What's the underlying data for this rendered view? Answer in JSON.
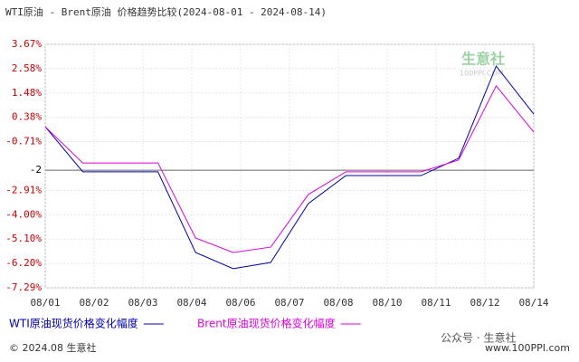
{
  "chart_data": {
    "type": "line",
    "title": "WTI原油 - Brent原油 价格趋势比较(2024-08-01 - 2024-08-14)",
    "xticks": [
      "08/01",
      "08/02",
      "08/03",
      "08/04",
      "08/06",
      "08/07",
      "08/08",
      "08/10",
      "08/11",
      "08/12",
      "08/14"
    ],
    "series": [
      {
        "name": "WTI原油现货价格变化幅度",
        "color": "#0000aa",
        "values": [
          -0.04,
          -2.07,
          -2.07,
          -2.07,
          -5.7,
          -6.43,
          -6.15,
          -3.5,
          -2.24,
          -2.24,
          -2.24,
          -1.46,
          2.69,
          0.53
        ]
      },
      {
        "name": "Brent原油现货价格变化幅度",
        "color": "#dd00dd",
        "values": [
          -0.04,
          -1.67,
          -1.67,
          -1.67,
          -5.05,
          -5.7,
          -5.46,
          -3.09,
          -2.07,
          -2.07,
          -2.07,
          -1.54,
          1.8,
          -0.28
        ]
      }
    ],
    "ylim": [
      -7.29,
      3.67
    ],
    "yticks": [
      {
        "value": 3.67,
        "label": "3.67%"
      },
      {
        "value": 2.58,
        "label": "2.58%"
      },
      {
        "value": 1.48,
        "label": "1.48%"
      },
      {
        "value": 0.38,
        "label": "0.38%"
      },
      {
        "value": -0.71,
        "label": "-0.71%"
      },
      -2,
      {
        "value": -2.91,
        "label": "-2.91%"
      },
      {
        "value": -4.0,
        "label": "-4.00%"
      },
      {
        "value": -5.1,
        "label": "-5.10%"
      },
      {
        "value": -6.2,
        "label": "-6.20%"
      },
      {
        "value": -7.29,
        "label": "-7.29%"
      }
    ],
    "reference_line": -2,
    "grid": true,
    "watermark": {
      "logo": "生意社",
      "site": "100PPI.COM"
    },
    "footer": {
      "left": "© 2024.08 生意社",
      "right": "www.100PPI.com",
      "wechat": "公众号 · 生意社"
    }
  }
}
